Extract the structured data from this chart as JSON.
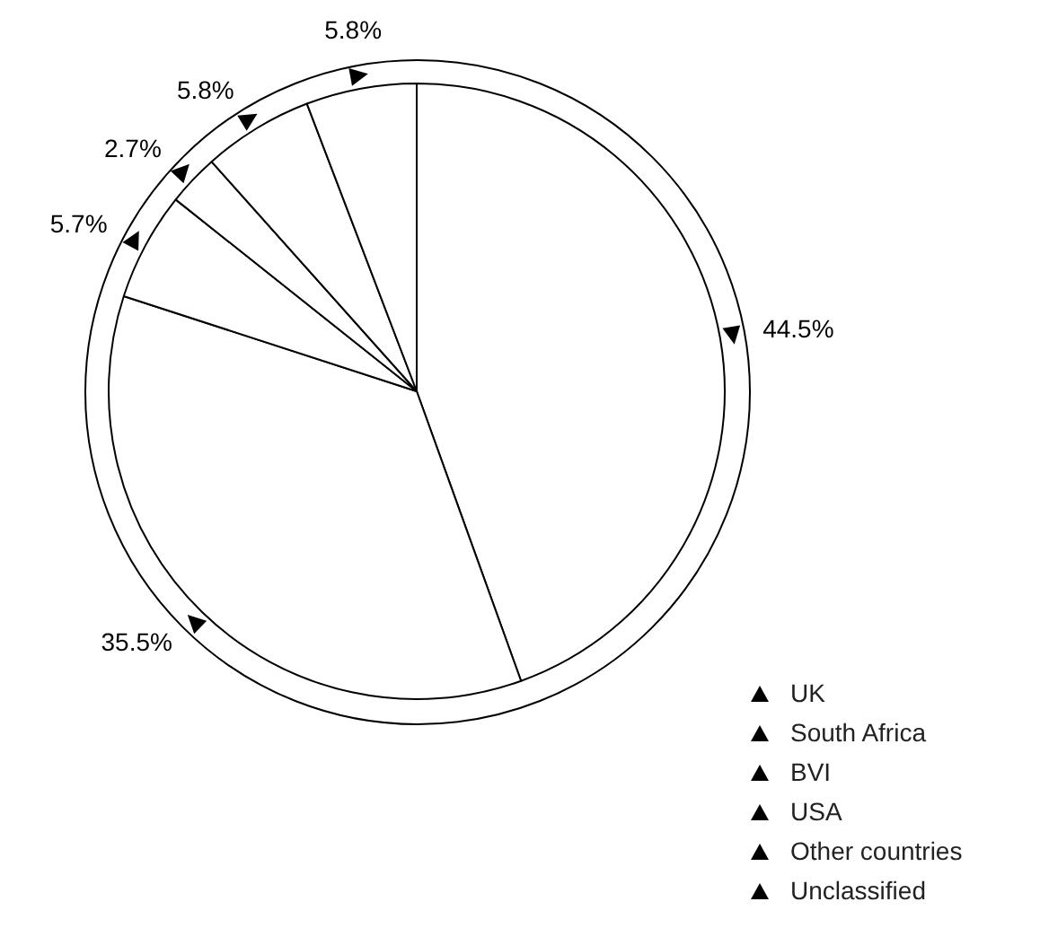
{
  "chart_data": {
    "type": "pie",
    "categories": [
      "UK",
      "South Africa",
      "BVI",
      "USA",
      "Other countries",
      "Unclassified"
    ],
    "values": [
      44.5,
      35.5,
      5.7,
      2.7,
      5.8,
      5.8
    ],
    "value_labels": [
      "44.5%",
      "35.5%",
      "5.7%",
      "2.7%",
      "5.8%",
      "5.8%"
    ],
    "colors": [
      "#ffffff",
      "#ffffff",
      "#ffffff",
      "#ffffff",
      "#ffffff",
      "#ffffff"
    ],
    "legend": "bottom right"
  }
}
